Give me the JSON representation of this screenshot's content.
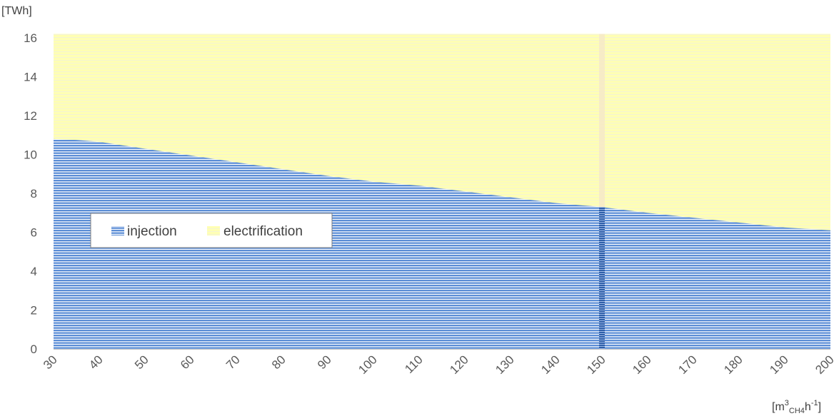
{
  "chart_data": {
    "type": "area",
    "stacked": true,
    "x_ticks": [
      "30",
      "40",
      "50",
      "60",
      "70",
      "80",
      "90",
      "100",
      "110",
      "120",
      "130",
      "140",
      "150",
      "160",
      "170",
      "180",
      "190",
      "200"
    ],
    "y_ticks": [
      "0",
      "2",
      "4",
      "6",
      "8",
      "10",
      "12",
      "14",
      "16"
    ],
    "xlim": [
      30,
      200
    ],
    "ylim": [
      0,
      16
    ],
    "ylabel": "[TWh]",
    "xlabel_parts": {
      "base": "[m",
      "sup1": "3",
      "sub": "CH4",
      "mid": "h",
      "sup2": "-1",
      "end": "]"
    },
    "legend_placement": "left",
    "highlight_x": 150,
    "series": [
      {
        "name": "injection",
        "color": "#4472C4",
        "x": [
          30,
          35,
          40,
          50,
          60,
          70,
          80,
          90,
          100,
          110,
          120,
          130,
          140,
          150,
          160,
          170,
          180,
          190,
          200
        ],
        "values": [
          10.8,
          10.75,
          10.65,
          10.3,
          9.95,
          9.6,
          9.25,
          8.9,
          8.6,
          8.4,
          8.1,
          7.8,
          7.5,
          7.3,
          7.0,
          6.75,
          6.5,
          6.25,
          6.1
        ]
      },
      {
        "name": "electrification",
        "color": "#FFFF99",
        "x": [
          30,
          200
        ],
        "values_top": 16.2
      }
    ]
  }
}
